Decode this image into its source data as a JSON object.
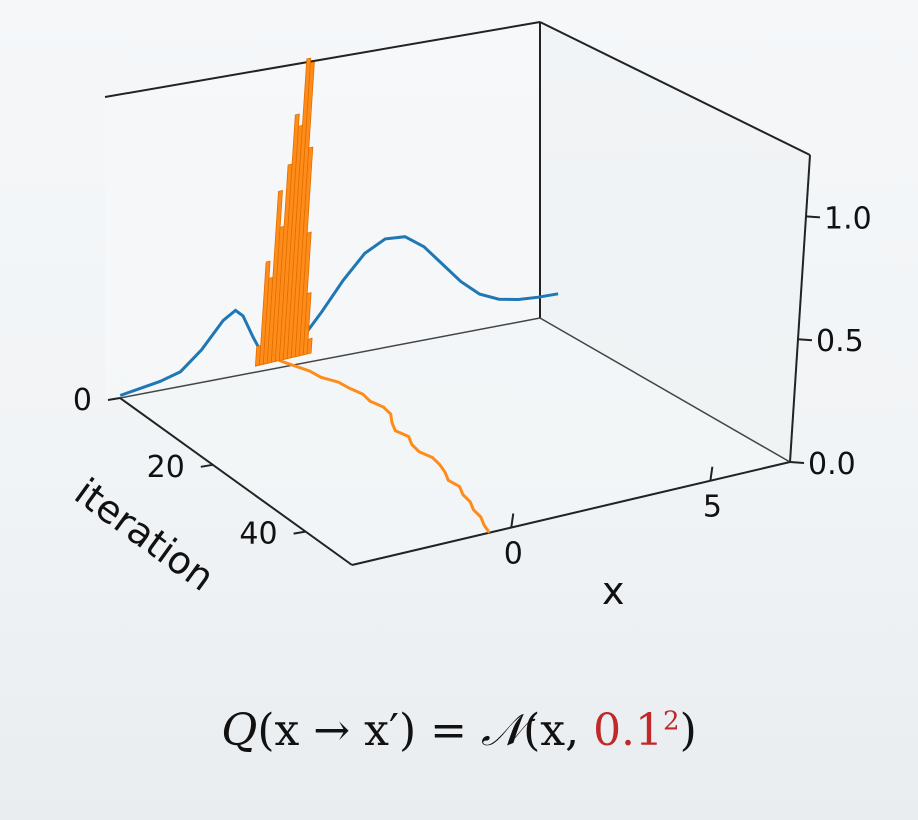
{
  "chart_data": {
    "type": "3d-histogram-with-trace",
    "xlabel": "x",
    "ylabel": "iteration",
    "zlabel": "",
    "x_ticks": [
      0,
      5
    ],
    "iteration_ticks": [
      0,
      20,
      40
    ],
    "z_ticks": [
      "0.0",
      "0.5",
      "1.0"
    ],
    "xlim": [
      -4,
      7
    ],
    "iteration_lim": [
      0,
      50
    ],
    "zlim": [
      0,
      1.25
    ],
    "series": [
      {
        "kind": "target_density_curve",
        "color": "#1f77b4",
        "x": [
          -4.0,
          -3.5,
          -3.0,
          -2.5,
          -2.0,
          -1.5,
          -1.2,
          -1.0,
          -0.7,
          -0.5,
          -0.3,
          0.0,
          0.3,
          0.6,
          1.0,
          1.5,
          2.0,
          2.5,
          3.0,
          3.5,
          4.0,
          4.5,
          5.0,
          5.5,
          6.0,
          6.5,
          7.0
        ],
        "z": [
          0.01,
          0.02,
          0.03,
          0.05,
          0.12,
          0.22,
          0.25,
          0.22,
          0.12,
          0.06,
          0.03,
          0.02,
          0.04,
          0.08,
          0.16,
          0.27,
          0.36,
          0.4,
          0.39,
          0.33,
          0.24,
          0.15,
          0.08,
          0.04,
          0.02,
          0.01,
          0.005
        ]
      },
      {
        "kind": "sample_histogram",
        "color": "#ff8c1a",
        "bins_x": [
          -0.55,
          -0.45,
          -0.35,
          -0.25,
          -0.15,
          -0.05,
          0.05,
          0.15,
          0.25,
          0.35,
          0.45,
          0.55,
          0.65,
          0.75
        ],
        "heights": [
          0.08,
          0.42,
          0.35,
          0.7,
          0.55,
          0.8,
          1.0,
          0.95,
          1.22,
          1.2,
          0.85,
          0.5,
          0.25,
          0.06
        ]
      },
      {
        "kind": "chain_trace",
        "color": "#ff8c1a",
        "iterations": [
          0,
          2,
          4,
          6,
          8,
          10,
          12,
          14,
          16,
          18,
          20,
          22,
          24,
          26,
          28,
          30,
          32,
          34,
          36,
          38,
          40,
          42,
          44,
          46,
          48,
          50
        ],
        "x": [
          0.0,
          0.15,
          0.3,
          0.35,
          0.55,
          0.6,
          0.7,
          0.65,
          0.75,
          0.7,
          0.5,
          0.35,
          0.45,
          0.3,
          0.25,
          0.35,
          0.3,
          0.2,
          0.05,
          0.1,
          -0.05,
          -0.1,
          -0.25,
          -0.3,
          -0.45,
          -0.55
        ]
      }
    ]
  },
  "formula": {
    "lhs_func": "Q",
    "lhs_args": "(x → x′)",
    "equals": " = ",
    "dist": "𝒩",
    "open": "(x, ",
    "variance_base": "0.1",
    "variance_exp": "2",
    "close": ")"
  }
}
